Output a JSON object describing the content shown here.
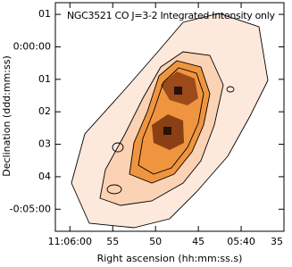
{
  "chart_data": {
    "type": "image",
    "title": "NGC3521 CO J=3-2 Integrated Intensity only",
    "xlabel": "Right ascension (hh:mm:ss.s)",
    "ylabel": "Declination (ddd:mm:ss)",
    "xlim": [
      61.7,
      35
    ],
    "xticks": [
      {
        "value": 60,
        "label": "11:06:00"
      },
      55,
      50,
      45,
      {
        "value": 40,
        "label": "05:40"
      },
      35
    ],
    "ylim": [
      -5.68,
      1.36
    ],
    "yticks": [
      {
        "value": 1,
        "label": "01"
      },
      {
        "value": 0,
        "label": "0:00:00"
      },
      {
        "value": -1,
        "label": "01"
      },
      {
        "value": -2,
        "label": "02"
      },
      {
        "value": -3,
        "label": "03"
      },
      {
        "value": -4,
        "label": "04"
      },
      {
        "value": -5,
        "label": "-0:05:00"
      }
    ]
  }
}
